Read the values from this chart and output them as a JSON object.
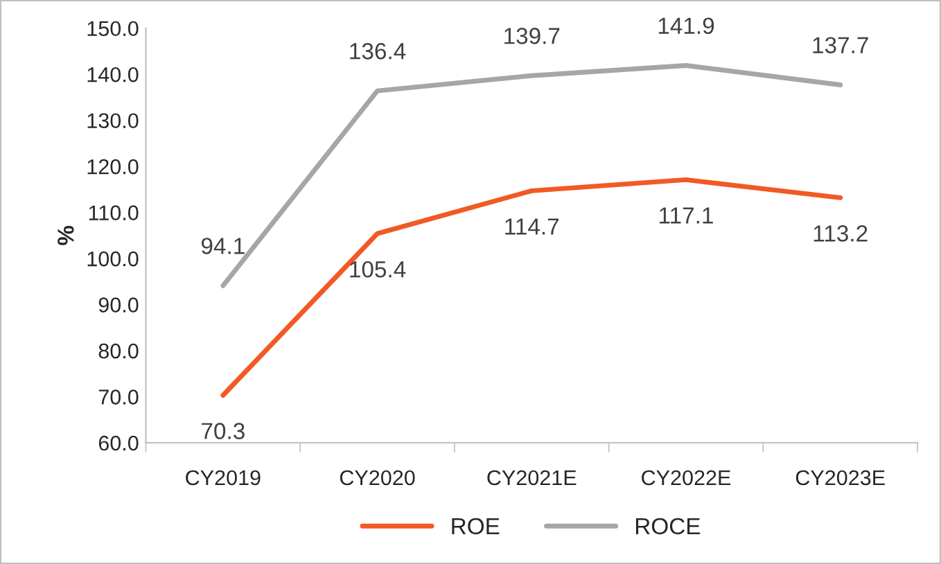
{
  "chart_data": {
    "type": "line",
    "ylabel": "%",
    "categories": [
      "CY2019",
      "CY2020",
      "CY2021E",
      "CY2022E",
      "CY2023E"
    ],
    "series": [
      {
        "name": "ROE",
        "color": "#f15a24",
        "values": [
          70.3,
          105.4,
          114.7,
          117.1,
          113.2
        ]
      },
      {
        "name": "ROCE",
        "color": "#a6a6a6",
        "values": [
          94.1,
          136.4,
          139.7,
          141.9,
          137.7
        ]
      }
    ],
    "ylim": [
      60,
      150
    ],
    "yticks": [
      {
        "value": 60,
        "label": "60.0"
      },
      {
        "value": 70,
        "label": "70.0"
      },
      {
        "value": 80,
        "label": "80.0"
      },
      {
        "value": 90,
        "label": "90.0"
      },
      {
        "value": 100,
        "label": "100.0"
      },
      {
        "value": 110,
        "label": "110.0"
      },
      {
        "value": 120,
        "label": "120.0"
      },
      {
        "value": 130,
        "label": "130.0"
      },
      {
        "value": 140,
        "label": "140.0"
      },
      {
        "value": 150,
        "label": "150.0"
      }
    ],
    "data_labels": true,
    "grid": false,
    "legend": "bottom",
    "marker": "none",
    "line_style": "solid"
  }
}
